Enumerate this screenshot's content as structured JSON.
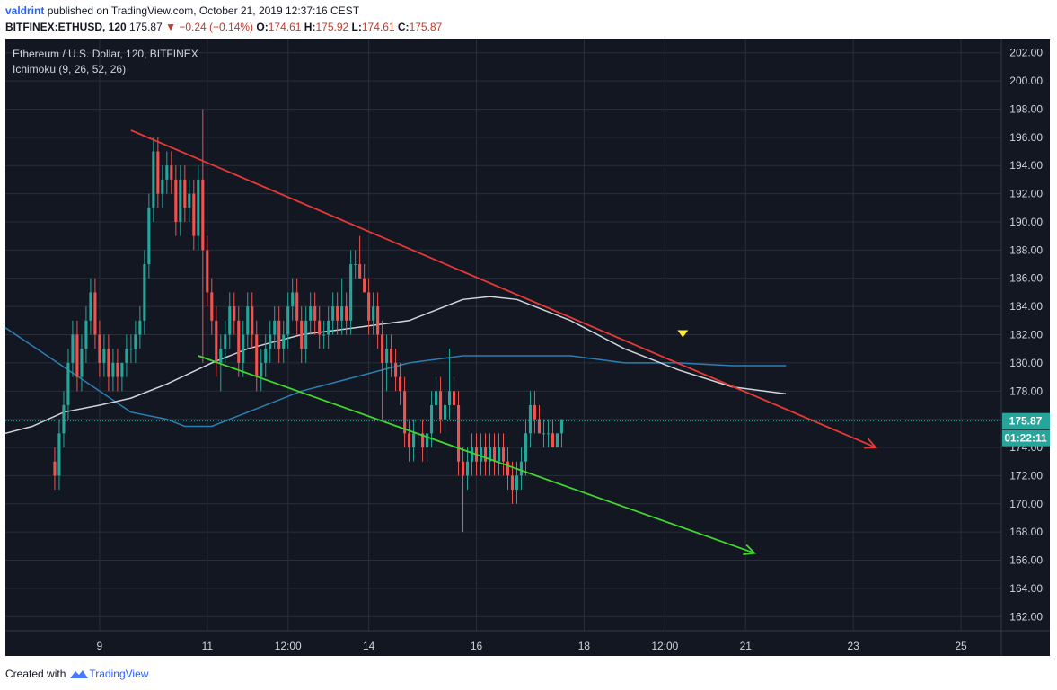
{
  "header": {
    "user": "valdrint",
    "published_text": "published on TradingView.com, October 21, 2019 12:37:16 CEST",
    "symbol": "BITFINEX:ETHUSD, 120",
    "last": "175.87",
    "change": "−0.24 (−0.14%)",
    "o_label": "O:",
    "o": "174.61",
    "h_label": "H:",
    "h": "175.92",
    "l_label": "L:",
    "l": "174.61",
    "c_label": "C:",
    "c": "175.87"
  },
  "legend": {
    "instrument": "Ethereum / U.S. Dollar, 120, BITFINEX",
    "indicator": "Ichimoku (9, 26, 52, 26)"
  },
  "footer": {
    "created_with": "Created with",
    "brand": "TradingView"
  },
  "colors": {
    "background": "#131722",
    "grid": "#2a2e39",
    "up": "#26a69a",
    "down": "#ef5350",
    "resistance": "#e53935",
    "support": "#41d62f",
    "white_line": "#d1d4dc",
    "blue_line": "#2a7fb3",
    "price_label": "#26a69a",
    "countdown_label": "#26a69a"
  },
  "chart_data": {
    "type": "candlestick",
    "title": "Ethereum / U.S. Dollar, 120, BITFINEX",
    "ylim": [
      161,
      203
    ],
    "y_ticks": [
      "202.00",
      "200.00",
      "198.00",
      "196.00",
      "194.00",
      "192.00",
      "190.00",
      "188.00",
      "186.00",
      "184.00",
      "182.00",
      "180.00",
      "178.00",
      "176.00",
      "174.00",
      "172.00",
      "170.00",
      "168.00",
      "166.00",
      "164.00",
      "162.00"
    ],
    "x_ticks": [
      {
        "label": "9",
        "t": 10
      },
      {
        "label": "11",
        "t": 34
      },
      {
        "label": "12:00",
        "t": 52
      },
      {
        "label": "14",
        "t": 70
      },
      {
        "label": "16",
        "t": 94
      },
      {
        "label": "18",
        "t": 118
      },
      {
        "label": "12:00",
        "t": 136
      },
      {
        "label": "21",
        "t": 154
      },
      {
        "label": "23",
        "t": 178
      },
      {
        "label": "25",
        "t": 202
      }
    ],
    "x_range": [
      -11,
      211
    ],
    "last_price": "175.87",
    "countdown": "01:22:11",
    "candles": [
      [
        173,
        174,
        171,
        172
      ],
      [
        172,
        176,
        171,
        175
      ],
      [
        175,
        178,
        174,
        177
      ],
      [
        177,
        181,
        176,
        180
      ],
      [
        180,
        183,
        179,
        182
      ],
      [
        182,
        183,
        178,
        179
      ],
      [
        179,
        182,
        178,
        181
      ],
      [
        181,
        184,
        180,
        183
      ],
      [
        183,
        186,
        182,
        185
      ],
      [
        185,
        186,
        181,
        182
      ],
      [
        182,
        183,
        179,
        180
      ],
      [
        180,
        182,
        179,
        181
      ],
      [
        181,
        182,
        178,
        179
      ],
      [
        179,
        181,
        178,
        180
      ],
      [
        180,
        181,
        178,
        179
      ],
      [
        179,
        180,
        178,
        180
      ],
      [
        180,
        182,
        179,
        181
      ],
      [
        181,
        182,
        180,
        181
      ],
      [
        181,
        183,
        180,
        182
      ],
      [
        182,
        184,
        181,
        183
      ],
      [
        183,
        188,
        182,
        187
      ],
      [
        187,
        192,
        186,
        191
      ],
      [
        191,
        196,
        190,
        195
      ],
      [
        195,
        196,
        191,
        192
      ],
      [
        192,
        194,
        191,
        193
      ],
      [
        193,
        195,
        192,
        194
      ],
      [
        194,
        195,
        192,
        193
      ],
      [
        193,
        194,
        189,
        190
      ],
      [
        190,
        194,
        189,
        193
      ],
      [
        193,
        194,
        190,
        191
      ],
      [
        191,
        193,
        190,
        192
      ],
      [
        192,
        193,
        188,
        189
      ],
      [
        189,
        194,
        188,
        193
      ],
      [
        193,
        198,
        180,
        188
      ],
      [
        188,
        189,
        184,
        185
      ],
      [
        185,
        186,
        182,
        183
      ],
      [
        183,
        184,
        179,
        180
      ],
      [
        180,
        182,
        178,
        181
      ],
      [
        181,
        183,
        180,
        182
      ],
      [
        182,
        185,
        181,
        184
      ],
      [
        184,
        185,
        182,
        183
      ],
      [
        183,
        184,
        179,
        180
      ],
      [
        180,
        183,
        179,
        182
      ],
      [
        182,
        185,
        181,
        184
      ],
      [
        184,
        185,
        181,
        182
      ],
      [
        182,
        183,
        178,
        179
      ],
      [
        179,
        181,
        178,
        180
      ],
      [
        180,
        182,
        179,
        181
      ],
      [
        181,
        183,
        180,
        182
      ],
      [
        182,
        184,
        181,
        183
      ],
      [
        183,
        184,
        180,
        181
      ],
      [
        181,
        183,
        180,
        182
      ],
      [
        182,
        185,
        181,
        184
      ],
      [
        184,
        186,
        183,
        185
      ],
      [
        185,
        186,
        182,
        183
      ],
      [
        183,
        184,
        180,
        181
      ],
      [
        181,
        184,
        180,
        183
      ],
      [
        183,
        185,
        182,
        184
      ],
      [
        184,
        185,
        182,
        183
      ],
      [
        183,
        184,
        181,
        182
      ],
      [
        182,
        183,
        181,
        182
      ],
      [
        182,
        184,
        181,
        183
      ],
      [
        183,
        185,
        182,
        184
      ],
      [
        184,
        185,
        182,
        183
      ],
      [
        183,
        186,
        182,
        184
      ],
      [
        184,
        185,
        182,
        183
      ],
      [
        183,
        188,
        182,
        187
      ],
      [
        187,
        188,
        186,
        187
      ],
      [
        187,
        189,
        186,
        186
      ],
      [
        186,
        187,
        185,
        185
      ],
      [
        185,
        186,
        182,
        183
      ],
      [
        183,
        185,
        182,
        184
      ],
      [
        184,
        185,
        181,
        182
      ],
      [
        182,
        183,
        176,
        180
      ],
      [
        180,
        182,
        178,
        181
      ],
      [
        181,
        182,
        179,
        180
      ],
      [
        180,
        181,
        178,
        179
      ],
      [
        179,
        180,
        177,
        178
      ],
      [
        178,
        179,
        174,
        175
      ],
      [
        175,
        176,
        173,
        174
      ],
      [
        174,
        176,
        173,
        175
      ],
      [
        175,
        176,
        174,
        175
      ],
      [
        175,
        176,
        173,
        174
      ],
      [
        174,
        175,
        173,
        175
      ],
      [
        175,
        178,
        174,
        177
      ],
      [
        177,
        179,
        176,
        178
      ],
      [
        178,
        179,
        175,
        176
      ],
      [
        176,
        178,
        175,
        177
      ],
      [
        177,
        181,
        176,
        178
      ],
      [
        178,
        179,
        176,
        177
      ],
      [
        177,
        178,
        172,
        173
      ],
      [
        173,
        174,
        168,
        172
      ],
      [
        172,
        174,
        171,
        173
      ],
      [
        173,
        175,
        172,
        174
      ],
      [
        174,
        175,
        172,
        173
      ],
      [
        173,
        175,
        172,
        174
      ],
      [
        174,
        175,
        172,
        173
      ],
      [
        173,
        175,
        172,
        174
      ],
      [
        174,
        175,
        172,
        173
      ],
      [
        173,
        175,
        172,
        174
      ],
      [
        174,
        175,
        172,
        173
      ],
      [
        173,
        174,
        171,
        172
      ],
      [
        172,
        173,
        170,
        171
      ],
      [
        171,
        173,
        170,
        172
      ],
      [
        172,
        174,
        171,
        173
      ],
      [
        173,
        176,
        172,
        175
      ],
      [
        175,
        178,
        174,
        177
      ],
      [
        177,
        178,
        175,
        176
      ],
      [
        176,
        177,
        175,
        175
      ],
      [
        175,
        176,
        174,
        175
      ],
      [
        175,
        176,
        174,
        175
      ],
      [
        175,
        176,
        174,
        174
      ],
      [
        174,
        175,
        174,
        175
      ],
      [
        175,
        176,
        174,
        176
      ]
    ],
    "series": [
      {
        "x": [
          -11,
          10,
          17,
          25,
          29,
          35,
          43,
          55,
          67,
          79,
          91,
          97,
          103,
          115,
          127,
          139,
          151,
          163
        ],
        "y": [
          182.5,
          178,
          176.5,
          176,
          175.5,
          175.5,
          176.5,
          178,
          179,
          180,
          180.5,
          180.5,
          180.5,
          180.5,
          180,
          180,
          179.8,
          179.8
        ]
      },
      {
        "x": [
          -11,
          -5,
          2,
          10,
          17,
          25,
          35,
          43,
          55,
          67,
          79,
          91,
          97,
          103,
          115,
          127,
          139,
          151,
          163
        ],
        "y": [
          175,
          175.5,
          176.5,
          177,
          177.5,
          178.5,
          180,
          181,
          182,
          182.5,
          183,
          184.5,
          184.7,
          184.5,
          183,
          181,
          179.5,
          178.3,
          177.8
        ]
      }
    ],
    "trendlines": [
      {
        "name": "resistance",
        "x1": 17,
        "y1": 196.5,
        "x2": 183,
        "y2": 174
      },
      {
        "name": "support",
        "x1": 32,
        "y1": 180.5,
        "x2": 156,
        "y2": 166.5
      }
    ],
    "marker": {
      "x": 140,
      "y": 182
    }
  }
}
